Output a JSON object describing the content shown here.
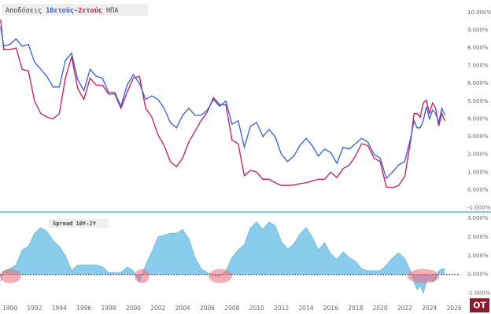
{
  "chart_data": [
    {
      "type": "line",
      "title": {
        "lead": "Αποδόσεις",
        "separator": "-",
        "tail": "ΗΠΑ"
      },
      "x": [
        1989.25,
        1989.5,
        1990,
        1990.5,
        1991,
        1991.5,
        1992,
        1992.5,
        1993,
        1993.5,
        1994,
        1994.5,
        1995,
        1995.5,
        1996,
        1996.5,
        1997,
        1997.5,
        1998,
        1998.5,
        1999,
        1999.5,
        2000,
        2000.5,
        2001,
        2001.5,
        2002,
        2002.5,
        2003,
        2003.5,
        2004,
        2004.5,
        2005,
        2005.5,
        2006,
        2006.5,
        2007,
        2007.5,
        2008,
        2008.5,
        2009,
        2009.5,
        2010,
        2010.5,
        2011,
        2011.5,
        2012,
        2012.5,
        2013,
        2013.5,
        2014,
        2014.5,
        2015,
        2015.5,
        2016,
        2016.5,
        2017,
        2017.5,
        2018,
        2018.5,
        2019,
        2019.5,
        2020,
        2020.5,
        2021,
        2021.5,
        2022,
        2022.5,
        2022.75,
        2023,
        2023.25,
        2023.5,
        2023.75,
        2024,
        2024.25,
        2024.5,
        2024.75,
        2025,
        2025.25
      ],
      "series": [
        {
          "name": "10ετούς",
          "color": "#2f5fe0",
          "values": [
            9.2,
            8.1,
            8.2,
            8.5,
            8.1,
            8.2,
            7.2,
            6.8,
            6.4,
            5.8,
            5.8,
            7.3,
            7.7,
            6.2,
            5.6,
            6.8,
            6.4,
            6.3,
            5.5,
            5.5,
            4.7,
            5.9,
            6.5,
            6.0,
            5.1,
            5.3,
            5.1,
            4.6,
            3.8,
            3.5,
            4.2,
            4.6,
            4.2,
            4.2,
            4.5,
            5.1,
            4.7,
            5.0,
            3.7,
            3.9,
            2.4,
            3.6,
            3.8,
            3.0,
            3.4,
            3.0,
            2.0,
            1.6,
            1.9,
            2.5,
            2.9,
            2.5,
            1.9,
            2.3,
            2.1,
            1.5,
            2.4,
            2.3,
            2.6,
            2.9,
            2.7,
            2.0,
            1.8,
            0.65,
            1.0,
            1.4,
            1.6,
            3.0,
            3.9,
            3.5,
            3.5,
            3.9,
            4.7,
            4.0,
            4.5,
            4.3,
            3.8,
            4.6,
            4.2
          ]
        },
        {
          "name": "2ετούς",
          "color": "#c8185a",
          "values": [
            9.6,
            7.9,
            7.9,
            8.0,
            6.8,
            6.7,
            5.0,
            4.3,
            4.1,
            4.0,
            4.3,
            6.3,
            7.5,
            5.7,
            5.1,
            6.3,
            5.9,
            5.9,
            5.4,
            5.4,
            4.6,
            5.5,
            6.3,
            6.4,
            4.6,
            4.1,
            3.1,
            2.5,
            1.6,
            1.3,
            1.8,
            2.7,
            3.3,
            3.9,
            4.4,
            5.2,
            4.8,
            4.8,
            2.8,
            2.6,
            0.8,
            1.1,
            1.0,
            0.6,
            0.6,
            0.4,
            0.25,
            0.25,
            0.27,
            0.35,
            0.4,
            0.5,
            0.6,
            0.6,
            1.0,
            0.7,
            1.2,
            1.4,
            1.9,
            2.6,
            2.5,
            1.8,
            1.6,
            0.17,
            0.12,
            0.25,
            0.75,
            2.9,
            4.3,
            4.3,
            4.1,
            4.9,
            5.05,
            4.3,
            4.9,
            4.6,
            3.6,
            4.3,
            3.9
          ]
        }
      ],
      "xlim": [
        1989.2,
        2026.5
      ],
      "ylim": [
        -1.2,
        10.7
      ],
      "yticks": [
        {
          "value": 10,
          "label": "10.000%"
        },
        {
          "value": 9,
          "label": "9.000%"
        },
        {
          "value": 8,
          "label": "8.000%"
        },
        {
          "value": 7,
          "label": "7.000%"
        },
        {
          "value": 6,
          "label": "6.000%"
        },
        {
          "value": 5,
          "label": "5.000%"
        },
        {
          "value": 4,
          "label": "4.000%"
        },
        {
          "value": 3,
          "label": "3.000%"
        },
        {
          "value": 2,
          "label": "2.000%"
        },
        {
          "value": 1,
          "label": "1.000%"
        },
        {
          "value": 0,
          "label": "0.000%"
        },
        {
          "value": -1,
          "label": "-1.000%"
        }
      ]
    },
    {
      "type": "area",
      "title": "Spread 10Y-2Y",
      "x": [
        1989.25,
        1989.5,
        1990,
        1990.5,
        1991,
        1991.5,
        1992,
        1992.5,
        1993,
        1993.5,
        1994,
        1994.5,
        1995,
        1995.5,
        1996,
        1996.5,
        1997,
        1997.5,
        1998,
        1998.5,
        1999,
        1999.5,
        2000,
        2000.5,
        2001,
        2001.5,
        2002,
        2002.5,
        2003,
        2003.5,
        2004,
        2004.5,
        2005,
        2005.5,
        2006,
        2006.5,
        2007,
        2007.5,
        2008,
        2008.5,
        2009,
        2009.5,
        2010,
        2010.5,
        2011,
        2011.5,
        2012,
        2012.5,
        2013,
        2013.5,
        2014,
        2014.5,
        2015,
        2015.5,
        2016,
        2016.5,
        2017,
        2017.5,
        2018,
        2018.5,
        2019,
        2019.5,
        2020,
        2020.5,
        2021,
        2021.5,
        2022,
        2022.5,
        2022.75,
        2023,
        2023.25,
        2023.5,
        2023.75,
        2024,
        2024.25,
        2024.5,
        2024.75,
        2025,
        2025.25
      ],
      "values": [
        -0.4,
        0.2,
        0.3,
        0.5,
        1.3,
        1.5,
        2.2,
        2.5,
        2.3,
        1.8,
        1.5,
        1.0,
        0.2,
        0.5,
        0.5,
        0.5,
        0.5,
        0.4,
        0.1,
        0.1,
        0.1,
        0.4,
        0.2,
        -0.4,
        0.5,
        1.2,
        2.0,
        2.1,
        2.2,
        2.2,
        2.4,
        1.9,
        0.9,
        0.3,
        0.1,
        -0.1,
        -0.1,
        0.2,
        0.9,
        1.3,
        1.6,
        2.5,
        2.8,
        2.4,
        2.8,
        2.6,
        1.75,
        1.35,
        1.63,
        2.15,
        2.5,
        2.0,
        1.3,
        1.7,
        1.1,
        0.8,
        1.2,
        0.9,
        0.7,
        0.3,
        0.2,
        0.2,
        0.2,
        0.48,
        0.88,
        1.15,
        0.85,
        0.1,
        -0.4,
        -0.8,
        -0.6,
        -1.0,
        -0.35,
        -0.3,
        -0.4,
        -0.3,
        0.2,
        0.3,
        0.3
      ],
      "color": "#7cc6ea",
      "highlights": [
        [
          1989.2,
          1990.9
        ],
        [
          2000.1,
          2001.3
        ],
        [
          2006.1,
          2008.0
        ],
        [
          2022.2,
          2024.8
        ]
      ],
      "xlim": [
        1989.2,
        2026.5
      ],
      "ylim": [
        -1.4,
        3.3
      ],
      "yticks": [
        {
          "value": 3,
          "label": "3.000%"
        },
        {
          "value": 2,
          "label": "2.000%"
        },
        {
          "value": 1,
          "label": "1.000%"
        },
        {
          "value": 0,
          "label": "0.000%"
        },
        {
          "value": -1,
          "label": "-1.000%"
        }
      ],
      "xticks": [
        1990,
        1992,
        1994,
        1996,
        1998,
        2000,
        2002,
        2004,
        2006,
        2008,
        2010,
        2012,
        2014,
        2016,
        2018,
        2020,
        2022,
        2024,
        2026
      ]
    }
  ],
  "logo": "OT"
}
